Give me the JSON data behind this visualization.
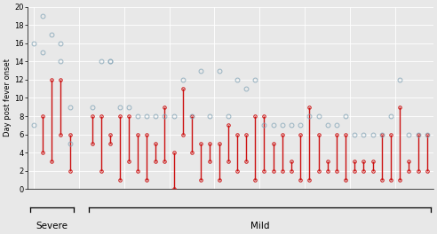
{
  "ylabel": "Day post fever onset",
  "ylim": [
    0,
    20
  ],
  "yticks": [
    0,
    2,
    4,
    6,
    8,
    10,
    12,
    14,
    16,
    18,
    20
  ],
  "bg_color": "#e8e8e8",
  "grid_color": "#ffffff",
  "severe_label": "Severe",
  "mild_label": "Mild",
  "red_color": "#cc1111",
  "blue_color": "#8aaabb",
  "severe_patients": [
    {
      "rb": null,
      "rt": null,
      "blues": [
        7,
        16
      ]
    },
    {
      "rb": 4,
      "rt": 8,
      "blues": [
        19,
        15
      ]
    },
    {
      "rb": 3,
      "rt": 12,
      "blues": [
        17
      ]
    },
    {
      "rb": 6,
      "rt": 12,
      "blues": [
        16,
        14
      ]
    },
    {
      "rb": 2,
      "rt": 6,
      "blues": [
        9,
        5
      ]
    }
  ],
  "mild_patients": [
    {
      "rb": 5,
      "rt": 8,
      "blues": [
        9
      ]
    },
    {
      "rb": 2,
      "rt": 8,
      "blues": [
        14
      ]
    },
    {
      "rb": 5,
      "rt": 6,
      "blues": [
        14,
        14
      ]
    },
    {
      "rb": 1,
      "rt": 8,
      "blues": [
        9
      ]
    },
    {
      "rb": 3,
      "rt": 8,
      "blues": [
        9
      ]
    },
    {
      "rb": 2,
      "rt": 6,
      "blues": [
        8
      ]
    },
    {
      "rb": 1,
      "rt": 6,
      "blues": [
        8
      ]
    },
    {
      "rb": 3,
      "rt": 5,
      "blues": [
        8
      ]
    },
    {
      "rb": 3,
      "rt": 9,
      "blues": [
        8
      ]
    },
    {
      "rb": 0,
      "rt": 4,
      "blues": [
        8
      ]
    },
    {
      "rb": 6,
      "rt": 11,
      "blues": [
        12
      ]
    },
    {
      "rb": 4,
      "rt": 8,
      "blues": [
        8
      ]
    },
    {
      "rb": 1,
      "rt": 5,
      "blues": [
        13
      ]
    },
    {
      "rb": 3,
      "rt": 5,
      "blues": [
        8
      ]
    },
    {
      "rb": 1,
      "rt": 5,
      "blues": [
        13
      ]
    },
    {
      "rb": 3,
      "rt": 7,
      "blues": [
        8
      ]
    },
    {
      "rb": 2,
      "rt": 6,
      "blues": [
        12
      ]
    },
    {
      "rb": 3,
      "rt": 6,
      "blues": [
        11
      ]
    },
    {
      "rb": 1,
      "rt": 8,
      "blues": [
        12
      ]
    },
    {
      "rb": 2,
      "rt": 8,
      "blues": [
        7
      ]
    },
    {
      "rb": 2,
      "rt": 5,
      "blues": [
        7
      ]
    },
    {
      "rb": 2,
      "rt": 6,
      "blues": [
        7
      ]
    },
    {
      "rb": 2,
      "rt": 3,
      "blues": [
        7
      ]
    },
    {
      "rb": 1,
      "rt": 6,
      "blues": [
        7
      ]
    },
    {
      "rb": 1,
      "rt": 9,
      "blues": [
        8
      ]
    },
    {
      "rb": 2,
      "rt": 6,
      "blues": [
        8
      ]
    },
    {
      "rb": 2,
      "rt": 3,
      "blues": [
        7
      ]
    },
    {
      "rb": 2,
      "rt": 6,
      "blues": [
        7
      ]
    },
    {
      "rb": 1,
      "rt": 6,
      "blues": [
        8
      ]
    },
    {
      "rb": 2,
      "rt": 3,
      "blues": [
        6
      ]
    },
    {
      "rb": 2,
      "rt": 3,
      "blues": [
        6
      ]
    },
    {
      "rb": 2,
      "rt": 3,
      "blues": [
        6
      ]
    },
    {
      "rb": 1,
      "rt": 6,
      "blues": [
        6
      ]
    },
    {
      "rb": 1,
      "rt": 6,
      "blues": [
        8
      ]
    },
    {
      "rb": 1,
      "rt": 9,
      "blues": [
        12
      ]
    },
    {
      "rb": 2,
      "rt": 3,
      "blues": [
        6
      ]
    },
    {
      "rb": 2,
      "rt": 6,
      "blues": [
        6
      ]
    },
    {
      "rb": 2,
      "rt": 6,
      "blues": [
        6
      ]
    }
  ],
  "figsize": [
    4.92,
    2.64
  ],
  "dpi": 100
}
